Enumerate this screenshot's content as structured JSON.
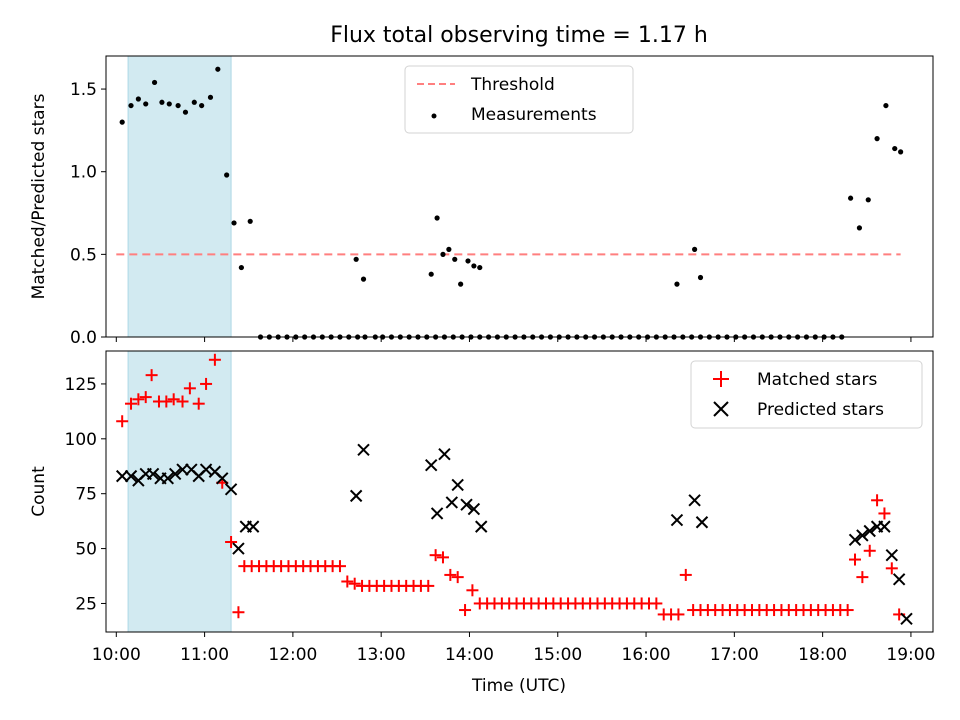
{
  "title": "Flux total observing time = 1.17 h",
  "colors": {
    "threshold": "#ff7f7f",
    "measurements": "#000000",
    "matched": "#ff0000",
    "predicted": "#000000",
    "span": "#add8e6"
  },
  "chart_data": [
    {
      "type": "scatter",
      "ylabel": "Matched/Predicted stars",
      "xlabel": "",
      "ylim": [
        0,
        1.7
      ],
      "yticks": [
        "0.0",
        "0.5",
        "1.0",
        "1.5"
      ],
      "legend": {
        "position": "top-center",
        "entries": [
          "Threshold",
          "Measurements"
        ]
      },
      "threshold": {
        "name": "Threshold",
        "y": 0.5,
        "x_range": [
          "10:00",
          "18:53"
        ]
      },
      "highlight_span": [
        "10:08",
        "11:18"
      ],
      "series": [
        {
          "name": "Measurements",
          "marker": "dot",
          "x": [
            "10:04",
            "10:10",
            "10:15",
            "10:20",
            "10:26",
            "10:31",
            "10:36",
            "10:42",
            "10:47",
            "10:53",
            "10:58",
            "11:04",
            "11:09",
            "11:15",
            "11:20",
            "11:25",
            "11:31",
            "11:38",
            "11:44",
            "11:50",
            "11:56",
            "12:02",
            "12:08",
            "12:14",
            "12:20",
            "12:26",
            "12:32",
            "12:38",
            "12:44",
            "12:49",
            "12:56",
            "13:01",
            "13:07",
            "13:13",
            "13:19",
            "13:25",
            "13:31",
            "13:37",
            "13:43",
            "13:49",
            "13:55",
            "14:01",
            "14:07",
            "14:13",
            "14:19",
            "14:25",
            "14:31",
            "14:37",
            "14:43",
            "14:49",
            "14:55",
            "15:01",
            "15:07",
            "15:13",
            "15:19",
            "15:25",
            "15:31",
            "15:37",
            "15:43",
            "15:49",
            "15:55",
            "16:01",
            "16:07",
            "16:13",
            "16:19",
            "16:25",
            "16:31",
            "16:37",
            "16:43",
            "16:49",
            "16:55",
            "17:01",
            "17:07",
            "17:13",
            "17:19",
            "17:25",
            "17:31",
            "17:37",
            "17:43",
            "17:49",
            "17:55",
            "18:01",
            "18:07",
            "18:13",
            "18:19",
            "18:25",
            "18:31",
            "18:37",
            "18:43",
            "18:49"
          ],
          "y": [
            1.3,
            1.4,
            1.44,
            1.41,
            1.54,
            1.42,
            1.41,
            1.4,
            1.36,
            1.42,
            1.4,
            1.45,
            1.62,
            0.98,
            0.69,
            0.42,
            0.7,
            0,
            0,
            0,
            0,
            0,
            0,
            0,
            0,
            0,
            0,
            0,
            0,
            0,
            0,
            0,
            0,
            0,
            0,
            0,
            0,
            0,
            0,
            0,
            0,
            0,
            0,
            0,
            0,
            0,
            0,
            0,
            0,
            0,
            0,
            0,
            0,
            0,
            0,
            0,
            0,
            0,
            0,
            0,
            0,
            0,
            0,
            0,
            0,
            0,
            0,
            0,
            0,
            0,
            0,
            0,
            0,
            0,
            0,
            0,
            0,
            0,
            0,
            0,
            0,
            0,
            0,
            0,
            0.84,
            0.66,
            0.83,
            1.2,
            1.4,
            1.14
          ]
        }
      ],
      "extra_points": {
        "x": [
          "12:43",
          "12:48",
          "13:34",
          "13:38",
          "13:42",
          "13:46",
          "13:50",
          "13:54",
          "13:59",
          "14:03",
          "14:07",
          "16:21",
          "16:33",
          "16:37",
          "18:53"
        ],
        "y": [
          0.47,
          0.35,
          0.38,
          0.72,
          0.5,
          0.53,
          0.47,
          0.32,
          0.46,
          0.43,
          0.42,
          0.32,
          0.53,
          0.36,
          1.12
        ]
      }
    },
    {
      "type": "scatter",
      "ylabel": "Count",
      "xlabel": "Time (UTC)",
      "ylim": [
        12,
        140
      ],
      "yticks": [
        "25",
        "50",
        "75",
        "100",
        "125"
      ],
      "xticks": [
        "10:00",
        "11:00",
        "12:00",
        "13:00",
        "14:00",
        "15:00",
        "16:00",
        "17:00",
        "18:00",
        "19:00"
      ],
      "legend": {
        "position": "top-right",
        "entries": [
          "Matched stars",
          "Predicted stars"
        ]
      },
      "highlight_span": [
        "10:08",
        "11:18"
      ],
      "series": [
        {
          "name": "Matched stars",
          "marker": "plus",
          "x": [
            "10:04",
            "10:10",
            "10:15",
            "10:20",
            "10:24",
            "10:29",
            "10:34",
            "10:39",
            "10:45",
            "10:50",
            "10:56",
            "11:01",
            "11:07",
            "11:12",
            "11:18",
            "11:23",
            "11:27",
            "11:32",
            "11:37",
            "11:42",
            "11:47",
            "11:52",
            "11:57",
            "12:02",
            "12:07",
            "12:12",
            "12:17",
            "12:22",
            "12:27",
            "12:32",
            "12:37",
            "12:42",
            "12:47",
            "12:52",
            "12:57",
            "13:02",
            "13:07",
            "13:12",
            "13:17",
            "13:22",
            "13:27",
            "13:32",
            "13:37",
            "13:42",
            "13:47",
            "13:52",
            "13:57",
            "14:02",
            "14:07",
            "14:12",
            "14:17",
            "14:22",
            "14:27",
            "14:32",
            "14:37",
            "14:42",
            "14:47",
            "14:52",
            "14:57",
            "15:02",
            "15:07",
            "15:12",
            "15:17",
            "15:22",
            "15:27",
            "15:32",
            "15:37",
            "15:42",
            "15:47",
            "15:52",
            "15:57",
            "16:02",
            "16:07",
            "16:12",
            "16:17",
            "16:22",
            "16:27",
            "16:32",
            "16:37",
            "16:42",
            "16:47",
            "16:52",
            "16:57",
            "17:02",
            "17:07",
            "17:12",
            "17:17",
            "17:22",
            "17:27",
            "17:32",
            "17:37",
            "17:42",
            "17:47",
            "17:52",
            "17:57",
            "18:02",
            "18:07",
            "18:12",
            "18:17",
            "18:22",
            "18:27",
            "18:32",
            "18:37",
            "18:42",
            "18:47",
            "18:52"
          ],
          "y": [
            108,
            116,
            118,
            119,
            129,
            117,
            117,
            118,
            117,
            123,
            116,
            125,
            136,
            80,
            53,
            21,
            42,
            42,
            42,
            42,
            42,
            42,
            42,
            42,
            42,
            42,
            42,
            42,
            42,
            42,
            35,
            34,
            33,
            33,
            33,
            33,
            33,
            33,
            33,
            33,
            33,
            33,
            47,
            46,
            38,
            37,
            22,
            31,
            25,
            25,
            25,
            25,
            25,
            25,
            25,
            25,
            25,
            25,
            25,
            25,
            25,
            25,
            25,
            25,
            25,
            25,
            25,
            25,
            25,
            25,
            25,
            25,
            25,
            20,
            20,
            20,
            38,
            22,
            22,
            22,
            22,
            22,
            22,
            22,
            22,
            22,
            22,
            22,
            22,
            22,
            22,
            22,
            22,
            22,
            22,
            22,
            22,
            22,
            22,
            45,
            37,
            49,
            72,
            66,
            41,
            20
          ]
        },
        {
          "name": "Predicted stars",
          "marker": "x",
          "x": [
            "10:04",
            "10:10",
            "10:15",
            "10:20",
            "10:25",
            "10:30",
            "10:35",
            "10:40",
            "10:45",
            "10:51",
            "10:56",
            "11:01",
            "11:07",
            "11:12",
            "11:18",
            "11:23",
            "11:28",
            "11:33",
            "12:43",
            "12:48",
            "13:34",
            "13:38",
            "13:43",
            "13:48",
            "13:52",
            "13:58",
            "14:03",
            "14:08",
            "16:21",
            "16:33",
            "16:38",
            "18:22",
            "18:27",
            "18:32",
            "18:37",
            "18:42",
            "18:47",
            "18:52",
            "18:57"
          ],
          "y": [
            83,
            83,
            81,
            84,
            84,
            82,
            82,
            84,
            86,
            86,
            83,
            86,
            85,
            82,
            77,
            50,
            60,
            60,
            74,
            95,
            88,
            66,
            93,
            71,
            79,
            70,
            68,
            60,
            63,
            72,
            62,
            54,
            56,
            58,
            60,
            60,
            47,
            36,
            18
          ]
        }
      ]
    }
  ]
}
